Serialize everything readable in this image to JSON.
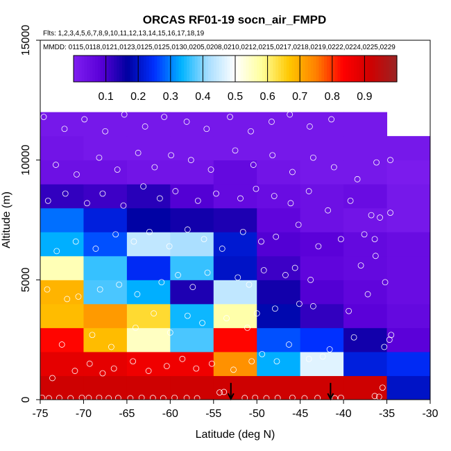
{
  "chart_data": {
    "type": "heatmap",
    "title": "ORCAS RF01-19 socn_air_FMPD",
    "subtitle_flights": "Flts: 1,2,3,4,5,6,7,8,9,10,11,12,13,14,15,16,17,18,19",
    "subtitle_dates": "MMDD: 0115,0118,0121,0123,0125,0125,0130,0205,0208,0210,0212,0215,0217,0218,0219,0222,0224,0225,0229",
    "xlabel": "Latitude (deg N)",
    "ylabel": "Altitude (m)",
    "xlim": [
      -75,
      -30
    ],
    "ylim": [
      0,
      15000
    ],
    "x_ticks": [
      -75,
      -70,
      -65,
      -60,
      -55,
      -50,
      -45,
      -40,
      -35,
      -30
    ],
    "x_tick_labels": [
      "-75",
      "-70",
      "-65",
      "-60",
      "-55",
      "-50",
      "-45",
      "-40",
      "-35",
      "-30"
    ],
    "y_ticks": [
      0,
      5000,
      10000,
      15000
    ],
    "y_tick_labels": [
      "0",
      "5000",
      "10000",
      "15000"
    ],
    "colorbar": {
      "range": [
        0,
        1
      ],
      "ticks": [
        0.1,
        0.2,
        0.3,
        0.4,
        0.5,
        0.6,
        0.7,
        0.8,
        0.9
      ],
      "tick_labels": [
        "0.1",
        "0.2",
        "0.3",
        "0.4",
        "0.5",
        "0.6",
        "0.7",
        "0.8",
        "0.9"
      ],
      "colors": [
        "#7f1ff0",
        "#5a00d8",
        "#0000a0",
        "#0030ff",
        "#00b4ff",
        "#a8deff",
        "#ffffff",
        "#ffff9a",
        "#ffc800",
        "#ff8000",
        "#ff0000",
        "#d00000",
        "#9a2424"
      ]
    },
    "cell_width_deg": 5,
    "cell_height_m": 1000,
    "cells": [
      {
        "lat": -75,
        "alt": 0,
        "value": 0.92
      },
      {
        "lat": -70,
        "alt": 0,
        "value": 0.92
      },
      {
        "lat": -65,
        "alt": 0,
        "value": 0.92
      },
      {
        "lat": -60,
        "alt": 0,
        "value": 0.92
      },
      {
        "lat": -55,
        "alt": 0,
        "value": 0.92
      },
      {
        "lat": -50,
        "alt": 0,
        "value": 0.92
      },
      {
        "lat": -45,
        "alt": 0,
        "value": 0.92
      },
      {
        "lat": -40,
        "alt": 0,
        "value": 0.92
      },
      {
        "lat": -35,
        "alt": 0,
        "value": 0.2
      },
      {
        "lat": -75,
        "alt": 1000,
        "value": 0.88
      },
      {
        "lat": -70,
        "alt": 1000,
        "value": 0.88
      },
      {
        "lat": -65,
        "alt": 1000,
        "value": 0.86
      },
      {
        "lat": -60,
        "alt": 1000,
        "value": 0.86
      },
      {
        "lat": -55,
        "alt": 1000,
        "value": 0.73
      },
      {
        "lat": -50,
        "alt": 1000,
        "value": 0.33
      },
      {
        "lat": -45,
        "alt": 1000,
        "value": 0.47
      },
      {
        "lat": -40,
        "alt": 1000,
        "value": 0.22
      },
      {
        "lat": -35,
        "alt": 1000,
        "value": 0.24
      },
      {
        "lat": -75,
        "alt": 2000,
        "value": 0.83
      },
      {
        "lat": -70,
        "alt": 2000,
        "value": 0.68
      },
      {
        "lat": -65,
        "alt": 2000,
        "value": 0.55
      },
      {
        "lat": -60,
        "alt": 2000,
        "value": 0.37
      },
      {
        "lat": -55,
        "alt": 2000,
        "value": 0.83
      },
      {
        "lat": -50,
        "alt": 2000,
        "value": 0.27
      },
      {
        "lat": -45,
        "alt": 2000,
        "value": 0.25
      },
      {
        "lat": -40,
        "alt": 2000,
        "value": 0.15
      },
      {
        "lat": -35,
        "alt": 2000,
        "value": 0.08
      },
      {
        "lat": -75,
        "alt": 3000,
        "value": 0.68
      },
      {
        "lat": -70,
        "alt": 3000,
        "value": 0.72
      },
      {
        "lat": -65,
        "alt": 3000,
        "value": 0.64
      },
      {
        "lat": -60,
        "alt": 3000,
        "value": 0.34
      },
      {
        "lat": -55,
        "alt": 3000,
        "value": 0.57
      },
      {
        "lat": -50,
        "alt": 3000,
        "value": 0.18
      },
      {
        "lat": -45,
        "alt": 3000,
        "value": 0.12
      },
      {
        "lat": -40,
        "alt": 3000,
        "value": 0.08
      },
      {
        "lat": -35,
        "alt": 3000,
        "value": 0.06
      },
      {
        "lat": -75,
        "alt": 4000,
        "value": 0.69
      },
      {
        "lat": -70,
        "alt": 4000,
        "value": 0.37
      },
      {
        "lat": -65,
        "alt": 4000,
        "value": 0.33
      },
      {
        "lat": -60,
        "alt": 4000,
        "value": 0.14
      },
      {
        "lat": -55,
        "alt": 4000,
        "value": 0.44
      },
      {
        "lat": -50,
        "alt": 4000,
        "value": 0.15
      },
      {
        "lat": -45,
        "alt": 4000,
        "value": 0.09
      },
      {
        "lat": -40,
        "alt": 4000,
        "value": 0.07
      },
      {
        "lat": -35,
        "alt": 4000,
        "value": 0.05
      },
      {
        "lat": -75,
        "alt": 5000,
        "value": 0.56
      },
      {
        "lat": -70,
        "alt": 5000,
        "value": 0.36
      },
      {
        "lat": -65,
        "alt": 5000,
        "value": 0.24
      },
      {
        "lat": -60,
        "alt": 5000,
        "value": 0.36
      },
      {
        "lat": -55,
        "alt": 5000,
        "value": 0.2
      },
      {
        "lat": -50,
        "alt": 5000,
        "value": 0.11
      },
      {
        "lat": -45,
        "alt": 5000,
        "value": 0.07
      },
      {
        "lat": -40,
        "alt": 5000,
        "value": 0.06
      },
      {
        "lat": -35,
        "alt": 5000,
        "value": 0.05
      },
      {
        "lat": -75,
        "alt": 6000,
        "value": 0.33
      },
      {
        "lat": -70,
        "alt": 6000,
        "value": 0.27
      },
      {
        "lat": -65,
        "alt": 6000,
        "value": 0.44
      },
      {
        "lat": -60,
        "alt": 6000,
        "value": 0.42
      },
      {
        "lat": -55,
        "alt": 6000,
        "value": 0.21
      },
      {
        "lat": -50,
        "alt": 6000,
        "value": 0.09
      },
      {
        "lat": -45,
        "alt": 6000,
        "value": 0.08
      },
      {
        "lat": -40,
        "alt": 6000,
        "value": 0.06
      },
      {
        "lat": -35,
        "alt": 6000,
        "value": 0.05
      },
      {
        "lat": -75,
        "alt": 7000,
        "value": 0.29
      },
      {
        "lat": -70,
        "alt": 7000,
        "value": 0.22
      },
      {
        "lat": -65,
        "alt": 7000,
        "value": 0.17
      },
      {
        "lat": -60,
        "alt": 7000,
        "value": 0.15
      },
      {
        "lat": -55,
        "alt": 7000,
        "value": 0.14
      },
      {
        "lat": -50,
        "alt": 7000,
        "value": 0.07
      },
      {
        "lat": -45,
        "alt": 7000,
        "value": 0.04
      },
      {
        "lat": -40,
        "alt": 7000,
        "value": 0.03
      },
      {
        "lat": -35,
        "alt": 7000,
        "value": 0.02
      },
      {
        "lat": -75,
        "alt": 8000,
        "value": 0.12
      },
      {
        "lat": -70,
        "alt": 8000,
        "value": 0.11
      },
      {
        "lat": -65,
        "alt": 8000,
        "value": 0.13
      },
      {
        "lat": -60,
        "alt": 8000,
        "value": 0.09
      },
      {
        "lat": -55,
        "alt": 8000,
        "value": 0.06
      },
      {
        "lat": -50,
        "alt": 8000,
        "value": 0.05
      },
      {
        "lat": -45,
        "alt": 8000,
        "value": 0.04
      },
      {
        "lat": -40,
        "alt": 8000,
        "value": 0.05
      },
      {
        "lat": -35,
        "alt": 8000,
        "value": 0.02
      },
      {
        "lat": -75,
        "alt": 9000,
        "value": 0.04
      },
      {
        "lat": -70,
        "alt": 9000,
        "value": 0.04
      },
      {
        "lat": -65,
        "alt": 9000,
        "value": 0.03
      },
      {
        "lat": -60,
        "alt": 9000,
        "value": 0.03
      },
      {
        "lat": -55,
        "alt": 9000,
        "value": 0.06
      },
      {
        "lat": -50,
        "alt": 9000,
        "value": 0.03
      },
      {
        "lat": -45,
        "alt": 9000,
        "value": 0.02
      },
      {
        "lat": -40,
        "alt": 9000,
        "value": 0.02
      },
      {
        "lat": -35,
        "alt": 9000,
        "value": 0.01
      },
      {
        "lat": -75,
        "alt": 10000,
        "value": 0.03
      },
      {
        "lat": -70,
        "alt": 10000,
        "value": 0.02
      },
      {
        "lat": -65,
        "alt": 10000,
        "value": 0.02
      },
      {
        "lat": -60,
        "alt": 10000,
        "value": 0.02
      },
      {
        "lat": -55,
        "alt": 10000,
        "value": 0.02
      },
      {
        "lat": -50,
        "alt": 10000,
        "value": 0.02
      },
      {
        "lat": -45,
        "alt": 10000,
        "value": 0.02
      },
      {
        "lat": -40,
        "alt": 10000,
        "value": 0.02
      },
      {
        "lat": -35,
        "alt": 10000,
        "value": 0.02
      },
      {
        "lat": -75,
        "alt": 11000,
        "value": 0.02
      },
      {
        "lat": -70,
        "alt": 11000,
        "value": 0.02
      },
      {
        "lat": -65,
        "alt": 11000,
        "value": 0.02
      },
      {
        "lat": -60,
        "alt": 11000,
        "value": 0.02
      },
      {
        "lat": -55,
        "alt": 11000,
        "value": 0.02
      },
      {
        "lat": -50,
        "alt": 11000,
        "value": 0.02
      },
      {
        "lat": -45,
        "alt": 11000,
        "value": 0.02
      },
      {
        "lat": -40,
        "alt": 11000,
        "value": 0.02
      }
    ],
    "observations": [
      {
        "lat": -74.8,
        "alt": 80
      },
      {
        "lat": -74.0,
        "alt": 60
      },
      {
        "lat": -72.8,
        "alt": 70
      },
      {
        "lat": -71.5,
        "alt": 60
      },
      {
        "lat": -70.2,
        "alt": 80
      },
      {
        "lat": -69.4,
        "alt": 70
      },
      {
        "lat": -68.2,
        "alt": 80
      },
      {
        "lat": -67.1,
        "alt": 60
      },
      {
        "lat": -66.0,
        "alt": 70
      },
      {
        "lat": -64.6,
        "alt": 60
      },
      {
        "lat": -63.3,
        "alt": 80
      },
      {
        "lat": -62.0,
        "alt": 70
      },
      {
        "lat": -60.8,
        "alt": 60
      },
      {
        "lat": -59.5,
        "alt": 80
      },
      {
        "lat": -58.1,
        "alt": 70
      },
      {
        "lat": -56.9,
        "alt": 60
      },
      {
        "lat": -54.3,
        "alt": 300
      },
      {
        "lat": -53.8,
        "alt": 320
      },
      {
        "lat": -51.4,
        "alt": 70
      },
      {
        "lat": -50.2,
        "alt": 80
      },
      {
        "lat": -48.9,
        "alt": 60
      },
      {
        "lat": -47.6,
        "alt": 70
      },
      {
        "lat": -45.9,
        "alt": 80
      },
      {
        "lat": -44.5,
        "alt": 60
      },
      {
        "lat": -43.0,
        "alt": 70
      },
      {
        "lat": -41.0,
        "alt": 60
      },
      {
        "lat": -40.3,
        "alt": 80
      },
      {
        "lat": -36.4,
        "alt": 150
      },
      {
        "lat": -35.9,
        "alt": 120
      },
      {
        "lat": -35.5,
        "alt": 500
      },
      {
        "lat": -73.6,
        "alt": 900
      },
      {
        "lat": -71.0,
        "alt": 1200
      },
      {
        "lat": -69.3,
        "alt": 1500
      },
      {
        "lat": -67.8,
        "alt": 1100
      },
      {
        "lat": -66.5,
        "alt": 1300
      },
      {
        "lat": -64.3,
        "alt": 1600
      },
      {
        "lat": -62.5,
        "alt": 1200
      },
      {
        "lat": -60.4,
        "alt": 1400
      },
      {
        "lat": -58.6,
        "alt": 1700
      },
      {
        "lat": -57.0,
        "alt": 1300
      },
      {
        "lat": -55.2,
        "alt": 1500
      },
      {
        "lat": -52.7,
        "alt": 1250
      },
      {
        "lat": -50.6,
        "alt": 1600
      },
      {
        "lat": -49.4,
        "alt": 1900
      },
      {
        "lat": -47.7,
        "alt": 1600
      },
      {
        "lat": -46.3,
        "alt": 2300
      },
      {
        "lat": -44.0,
        "alt": 1700
      },
      {
        "lat": -42.4,
        "alt": 1800
      },
      {
        "lat": -41.6,
        "alt": 2100
      },
      {
        "lat": -38.8,
        "alt": 2600
      },
      {
        "lat": -34.5,
        "alt": 2700
      },
      {
        "lat": -34.7,
        "alt": 2500
      },
      {
        "lat": -35.3,
        "alt": 2200
      },
      {
        "lat": -72.5,
        "alt": 2300
      },
      {
        "lat": -69.0,
        "alt": 2700
      },
      {
        "lat": -66.8,
        "alt": 2200
      },
      {
        "lat": -64.0,
        "alt": 3000
      },
      {
        "lat": -61.9,
        "alt": 3600
      },
      {
        "lat": -60.0,
        "alt": 2800
      },
      {
        "lat": -58.0,
        "alt": 3500
      },
      {
        "lat": -56.3,
        "alt": 3200
      },
      {
        "lat": -53.5,
        "alt": 3400
      },
      {
        "lat": -51.1,
        "alt": 3000
      },
      {
        "lat": -50.0,
        "alt": 3600
      },
      {
        "lat": -47.9,
        "alt": 3800
      },
      {
        "lat": -45.1,
        "alt": 4000
      },
      {
        "lat": -43.5,
        "alt": 3900
      },
      {
        "lat": -39.4,
        "alt": 3700
      },
      {
        "lat": -37.2,
        "alt": 4400
      },
      {
        "lat": -74.2,
        "alt": 4600
      },
      {
        "lat": -71.9,
        "alt": 4200
      },
      {
        "lat": -70.6,
        "alt": 4300
      },
      {
        "lat": -68.1,
        "alt": 4600
      },
      {
        "lat": -65.9,
        "alt": 4800
      },
      {
        "lat": -63.8,
        "alt": 4400
      },
      {
        "lat": -61.0,
        "alt": 4900
      },
      {
        "lat": -59.1,
        "alt": 5200
      },
      {
        "lat": -57.4,
        "alt": 4700
      },
      {
        "lat": -55.7,
        "alt": 5300
      },
      {
        "lat": -52.2,
        "alt": 5100
      },
      {
        "lat": -50.9,
        "alt": 4800
      },
      {
        "lat": -49.2,
        "alt": 5400
      },
      {
        "lat": -46.7,
        "alt": 5200
      },
      {
        "lat": -45.6,
        "alt": 5500
      },
      {
        "lat": -43.8,
        "alt": 5000
      },
      {
        "lat": -38.0,
        "alt": 5600
      },
      {
        "lat": -36.3,
        "alt": 6000
      },
      {
        "lat": -35.2,
        "alt": 4900
      },
      {
        "lat": -73.1,
        "alt": 6200
      },
      {
        "lat": -70.9,
        "alt": 6600
      },
      {
        "lat": -68.6,
        "alt": 6300
      },
      {
        "lat": -66.3,
        "alt": 6900
      },
      {
        "lat": -64.2,
        "alt": 6600
      },
      {
        "lat": -62.4,
        "alt": 7000
      },
      {
        "lat": -60.1,
        "alt": 6400
      },
      {
        "lat": -58.0,
        "alt": 7100
      },
      {
        "lat": -56.1,
        "alt": 6700
      },
      {
        "lat": -54.0,
        "alt": 6300
      },
      {
        "lat": -51.6,
        "alt": 7000
      },
      {
        "lat": -49.5,
        "alt": 6600
      },
      {
        "lat": -47.8,
        "alt": 6800
      },
      {
        "lat": -45.2,
        "alt": 7300
      },
      {
        "lat": -42.9,
        "alt": 6400
      },
      {
        "lat": -40.3,
        "alt": 6700
      },
      {
        "lat": -37.6,
        "alt": 6900
      },
      {
        "lat": -36.4,
        "alt": 6700
      },
      {
        "lat": -34.6,
        "alt": 7800
      },
      {
        "lat": -35.8,
        "alt": 7600
      },
      {
        "lat": -74.1,
        "alt": 8300
      },
      {
        "lat": -72.1,
        "alt": 8600
      },
      {
        "lat": -69.6,
        "alt": 8200
      },
      {
        "lat": -67.8,
        "alt": 8600
      },
      {
        "lat": -65.4,
        "alt": 8100
      },
      {
        "lat": -63.1,
        "alt": 8900
      },
      {
        "lat": -61.2,
        "alt": 8400
      },
      {
        "lat": -59.4,
        "alt": 8700
      },
      {
        "lat": -56.8,
        "alt": 8300
      },
      {
        "lat": -54.7,
        "alt": 8600
      },
      {
        "lat": -51.9,
        "alt": 8400
      },
      {
        "lat": -50.1,
        "alt": 8800
      },
      {
        "lat": -48.0,
        "alt": 8500
      },
      {
        "lat": -46.1,
        "alt": 8200
      },
      {
        "lat": -44.0,
        "alt": 8700
      },
      {
        "lat": -41.8,
        "alt": 7900
      },
      {
        "lat": -39.2,
        "alt": 8300
      },
      {
        "lat": -36.8,
        "alt": 7700
      },
      {
        "lat": -73.2,
        "alt": 9800
      },
      {
        "lat": -70.8,
        "alt": 9400
      },
      {
        "lat": -68.2,
        "alt": 10100
      },
      {
        "lat": -66.1,
        "alt": 9600
      },
      {
        "lat": -63.7,
        "alt": 10300
      },
      {
        "lat": -61.8,
        "alt": 9700
      },
      {
        "lat": -59.9,
        "alt": 10200
      },
      {
        "lat": -57.6,
        "alt": 10000
      },
      {
        "lat": -55.3,
        "alt": 9600
      },
      {
        "lat": -52.5,
        "alt": 10400
      },
      {
        "lat": -50.4,
        "alt": 9800
      },
      {
        "lat": -48.2,
        "alt": 10200
      },
      {
        "lat": -45.9,
        "alt": 9500
      },
      {
        "lat": -43.5,
        "alt": 10100
      },
      {
        "lat": -41.1,
        "alt": 9700
      },
      {
        "lat": -38.4,
        "alt": 9200
      },
      {
        "lat": -36.2,
        "alt": 9900
      },
      {
        "lat": -34.6,
        "alt": 10000
      },
      {
        "lat": -74.6,
        "alt": 11800
      },
      {
        "lat": -72.2,
        "alt": 11300
      },
      {
        "lat": -69.9,
        "alt": 11700
      },
      {
        "lat": -67.5,
        "alt": 11200
      },
      {
        "lat": -65.3,
        "alt": 11900
      },
      {
        "lat": -62.9,
        "alt": 11400
      },
      {
        "lat": -60.7,
        "alt": 11800
      },
      {
        "lat": -58.1,
        "alt": 11600
      },
      {
        "lat": -55.8,
        "alt": 11300
      },
      {
        "lat": -53.1,
        "alt": 11800
      },
      {
        "lat": -50.7,
        "alt": 11200
      },
      {
        "lat": -48.3,
        "alt": 11600
      },
      {
        "lat": -46.2,
        "alt": 11900
      },
      {
        "lat": -43.9,
        "alt": 11400
      },
      {
        "lat": -41.4,
        "alt": 11700
      }
    ],
    "markers": [
      {
        "type": "arrow-down",
        "lat": -53.0,
        "from_alt": 700,
        "to_alt": 0
      },
      {
        "type": "arrow-down",
        "lat": -41.5,
        "from_alt": 700,
        "to_alt": 0
      }
    ]
  }
}
